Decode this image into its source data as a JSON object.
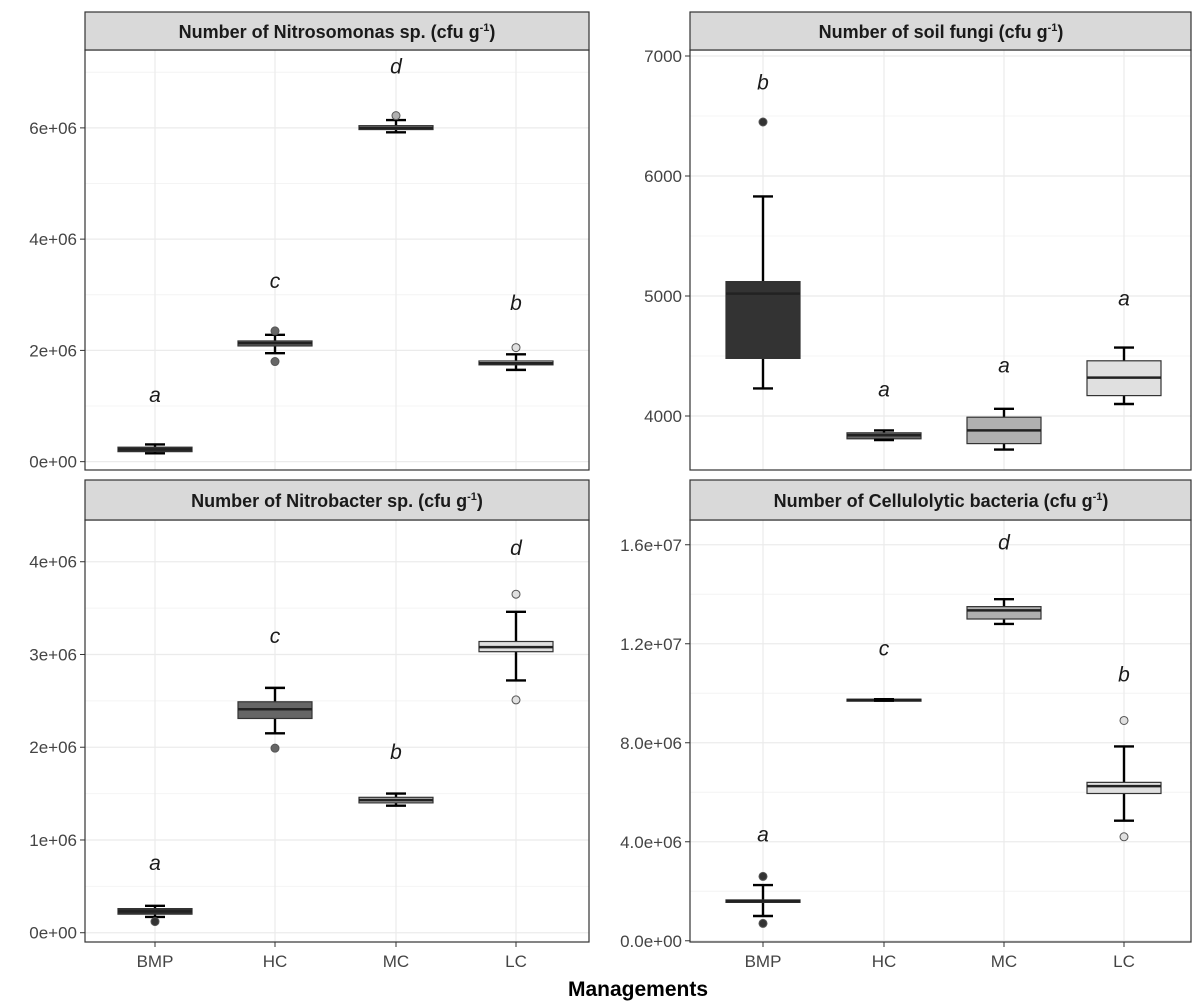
{
  "chart_data": [
    {
      "type": "boxplot",
      "title": "Number of Nitrosomonas sp. (cfu g",
      "title_sup": "-1",
      "title_close": ")",
      "categories": [
        "BMP",
        "HC",
        "MC",
        "LC"
      ],
      "ylim": [
        -150000,
        7400000
      ],
      "yticks": [
        0,
        2000000,
        4000000,
        6000000
      ],
      "ytick_labels": [
        "0e+00",
        "2e+06",
        "4e+06",
        "6e+06"
      ],
      "grid": true,
      "boxes": [
        {
          "category": "BMP",
          "fill": "#333333",
          "q1": 180000,
          "median": 220000,
          "q3": 260000,
          "whisker_low": 150000,
          "whisker_high": 310000,
          "outliers": [],
          "letter": "a",
          "letter_y": 1200000
        },
        {
          "category": "HC",
          "fill": "#666666",
          "q1": 2080000,
          "median": 2130000,
          "q3": 2170000,
          "whisker_low": 1950000,
          "whisker_high": 2280000,
          "outliers": [
            1800000,
            2350000
          ],
          "letter": "c",
          "letter_y": 3250000
        },
        {
          "category": "MC",
          "fill": "#b0b0b0",
          "q1": 5970000,
          "median": 6000000,
          "q3": 6040000,
          "whisker_low": 5920000,
          "whisker_high": 6140000,
          "outliers": [
            6220000
          ],
          "letter": "d",
          "letter_y": 7100000
        },
        {
          "category": "LC",
          "fill": "#e0e0e0",
          "q1": 1740000,
          "median": 1770000,
          "q3": 1810000,
          "whisker_low": 1650000,
          "whisker_high": 1930000,
          "outliers": [
            2050000
          ],
          "letter": "b",
          "letter_y": 2850000
        }
      ]
    },
    {
      "type": "boxplot",
      "title": "Number of soil fungi (cfu g",
      "title_sup": "-1",
      "title_close": ")",
      "categories": [
        "BMP",
        "HC",
        "MC",
        "LC"
      ],
      "ylim": [
        3550,
        7050
      ],
      "yticks": [
        4000,
        5000,
        6000,
        7000
      ],
      "ytick_labels": [
        "4000",
        "5000",
        "6000",
        "7000"
      ],
      "grid": true,
      "boxes": [
        {
          "category": "BMP",
          "fill": "#333333",
          "q1": 4480,
          "median": 5020,
          "q3": 5120,
          "whisker_low": 4230,
          "whisker_high": 5830,
          "outliers": [
            6450
          ],
          "letter": "b",
          "letter_y": 6780
        },
        {
          "category": "HC",
          "fill": "#666666",
          "q1": 3810,
          "median": 3840,
          "q3": 3860,
          "whisker_low": 3800,
          "whisker_high": 3880,
          "outliers": [],
          "letter": "a",
          "letter_y": 4220
        },
        {
          "category": "MC",
          "fill": "#b0b0b0",
          "q1": 3770,
          "median": 3880,
          "q3": 3990,
          "whisker_low": 3720,
          "whisker_high": 4060,
          "outliers": [],
          "letter": "a",
          "letter_y": 4420
        },
        {
          "category": "LC",
          "fill": "#e0e0e0",
          "q1": 4170,
          "median": 4320,
          "q3": 4460,
          "whisker_low": 4100,
          "whisker_high": 4570,
          "outliers": [],
          "letter": "a",
          "letter_y": 4980
        }
      ]
    },
    {
      "type": "boxplot",
      "title": "Number of Nitrobacter sp. (cfu g",
      "title_sup": "-1",
      "title_close": ")",
      "categories": [
        "BMP",
        "HC",
        "MC",
        "LC"
      ],
      "ylim": [
        -100000,
        4450000
      ],
      "yticks": [
        0,
        1000000,
        2000000,
        3000000,
        4000000
      ],
      "ytick_labels": [
        "0e+00",
        "1e+06",
        "2e+06",
        "3e+06",
        "4e+06"
      ],
      "grid": true,
      "boxes": [
        {
          "category": "BMP",
          "fill": "#333333",
          "q1": 200000,
          "median": 230000,
          "q3": 260000,
          "whisker_low": 170000,
          "whisker_high": 290000,
          "outliers": [
            120000
          ],
          "letter": "a",
          "letter_y": 750000
        },
        {
          "category": "HC",
          "fill": "#666666",
          "q1": 2310000,
          "median": 2410000,
          "q3": 2490000,
          "whisker_low": 2150000,
          "whisker_high": 2640000,
          "outliers": [
            1990000
          ],
          "letter": "c",
          "letter_y": 3200000
        },
        {
          "category": "MC",
          "fill": "#b0b0b0",
          "q1": 1400000,
          "median": 1430000,
          "q3": 1460000,
          "whisker_low": 1370000,
          "whisker_high": 1500000,
          "outliers": [],
          "letter": "b",
          "letter_y": 1950000
        },
        {
          "category": "LC",
          "fill": "#e0e0e0",
          "q1": 3030000,
          "median": 3080000,
          "q3": 3140000,
          "whisker_low": 2720000,
          "whisker_high": 3460000,
          "outliers": [
            3650000,
            2510000
          ],
          "letter": "d",
          "letter_y": 4150000
        }
      ]
    },
    {
      "type": "boxplot",
      "title": "Number of Cellulolytic bacteria (cfu g",
      "title_sup": "-1",
      "title_close": ")",
      "categories": [
        "BMP",
        "HC",
        "MC",
        "LC"
      ],
      "ylim": [
        -50000,
        17000000
      ],
      "yticks": [
        0,
        4000000,
        8000000,
        12000000,
        16000000
      ],
      "ytick_labels": [
        "0.0e+00",
        "4.0e+06",
        "8.0e+06",
        "1.2e+07",
        "1.6e+07"
      ],
      "grid": true,
      "boxes": [
        {
          "category": "BMP",
          "fill": "#333333",
          "q1": 1550000,
          "median": 1600000,
          "q3": 1650000,
          "whisker_low": 1000000,
          "whisker_high": 2250000,
          "outliers": [
            2600000,
            700000
          ],
          "letter": "a",
          "letter_y": 4300000
        },
        {
          "category": "HC",
          "fill": "#666666",
          "q1": 9700000,
          "median": 9730000,
          "q3": 9760000,
          "whisker_low": 9700000,
          "whisker_high": 9760000,
          "outliers": [],
          "letter": "c",
          "letter_y": 11800000
        },
        {
          "category": "MC",
          "fill": "#b0b0b0",
          "q1": 13000000,
          "median": 13350000,
          "q3": 13500000,
          "whisker_low": 12800000,
          "whisker_high": 13800000,
          "outliers": [],
          "letter": "d",
          "letter_y": 16100000
        },
        {
          "category": "LC",
          "fill": "#e0e0e0",
          "q1": 5950000,
          "median": 6250000,
          "q3": 6400000,
          "whisker_low": 4850000,
          "whisker_high": 7850000,
          "outliers": [
            8900000,
            4200000
          ],
          "letter": "b",
          "letter_y": 10750000
        }
      ]
    }
  ],
  "shared_x_label": "Managements",
  "colors": {
    "panel_border": "#333333",
    "strip_fill": "#d9d9d9",
    "grid_major": "#ebebeb",
    "grid_minor": "#f4f4f4",
    "outlier_stroke": "#555555"
  }
}
